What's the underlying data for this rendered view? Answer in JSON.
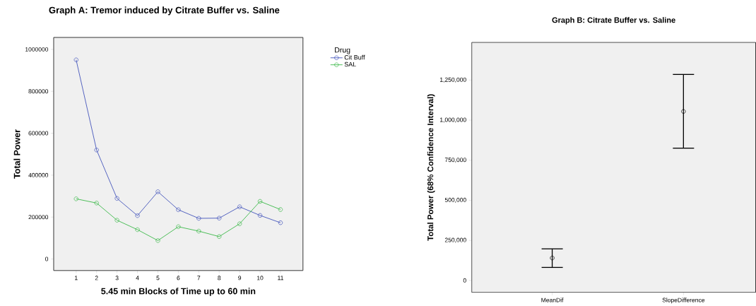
{
  "chart_data": [
    {
      "type": "line",
      "title": "Graph A: Tremor induced by Citrate Buffer vs. Saline",
      "xlabel": "5.45 min Blocks of Time up to 60 min",
      "ylabel": "Total Power",
      "legend_title": "Drug",
      "legend": "top right",
      "marker": "circle",
      "grid": false,
      "categories": [
        "1",
        "2",
        "3",
        "4",
        "5",
        "6",
        "7",
        "8",
        "9",
        "10",
        "11"
      ],
      "ylim": [
        -55000,
        1057000
      ],
      "yticks": [
        0,
        200000,
        400000,
        600000,
        800000,
        1000000
      ],
      "series": [
        {
          "name": "Cit Buff",
          "color": "#4455bb",
          "values": [
            950000,
            520000,
            289000,
            207000,
            321000,
            235000,
            194000,
            195000,
            249000,
            208000,
            173000
          ]
        },
        {
          "name": "SAL",
          "color": "#3cb94a",
          "values": [
            287000,
            267000,
            185000,
            140000,
            88000,
            154000,
            133000,
            107000,
            168000,
            275000,
            236000
          ]
        }
      ]
    },
    {
      "type": "scatter",
      "title": "Graph B: Citrate Buffer vs. Saline",
      "ylabel": "Total Power (68% Confidence Interval)",
      "marker": "circle",
      "grid": false,
      "categories": [
        "MeanDif",
        "SlopeDifference"
      ],
      "ylim": [
        -75000,
        1485000
      ],
      "yticks": [
        {
          "value": 0,
          "label": "0"
        },
        {
          "value": 250000,
          "label": "250,000"
        },
        {
          "value": 500000,
          "label": "500,000"
        },
        {
          "value": 750000,
          "label": "750,000"
        },
        {
          "value": 1000000,
          "label": "1,000,000"
        },
        {
          "value": 1250000,
          "label": "1,250,000"
        }
      ],
      "values": [
        140000,
        1054000
      ],
      "color": "#000000",
      "errors": [
        [
          81000,
          197000
        ],
        [
          825000,
          1285000
        ]
      ]
    }
  ]
}
